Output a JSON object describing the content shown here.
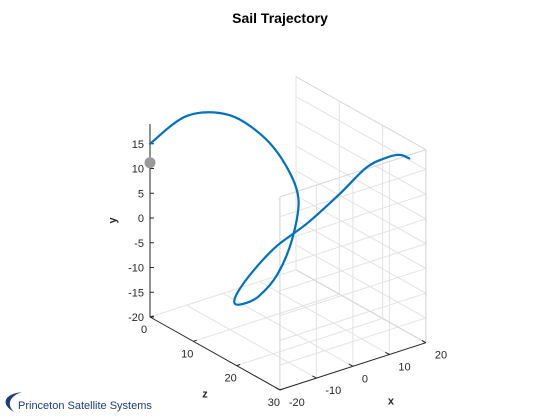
{
  "chart_data": {
    "type": "line",
    "title": "Sail Trajectory",
    "xlabel": "x",
    "ylabel": "y",
    "zlabel": "z",
    "xlim": [
      -20,
      20
    ],
    "ylim": [
      -20,
      19
    ],
    "zlim": [
      0,
      30
    ],
    "x_ticks": [
      "-20",
      "-10",
      "0",
      "10",
      "20"
    ],
    "y_ticks": [
      "-20",
      "-15",
      "-10",
      "-5",
      "0",
      "5",
      "10",
      "15"
    ],
    "z_ticks": [
      "0",
      "10",
      "20",
      "30"
    ],
    "grid": true,
    "line_color": "#0072BD",
    "marker_color": "#999999",
    "marker": {
      "x": -20,
      "y": 14,
      "z": 0
    },
    "series": [
      {
        "x": [
          -20,
          -11,
          -2,
          5,
          9,
          10,
          7,
          3,
          -1,
          -3,
          -4,
          -3,
          0,
          4,
          9,
          14,
          18,
          20,
          20,
          19
        ],
        "y": [
          15,
          19,
          18,
          13,
          7,
          1,
          -6,
          -12,
          -16,
          -18,
          -18,
          -16,
          -12,
          -7,
          -2,
          4,
          10,
          13,
          15,
          16
        ],
        "z": [
          0,
          1,
          3,
          5,
          7,
          9,
          10,
          10,
          9,
          7,
          6,
          6,
          7,
          9,
          12,
          15,
          18,
          21,
          24,
          27
        ]
      }
    ]
  },
  "footer": {
    "text": "Princeton Satellite Systems"
  }
}
